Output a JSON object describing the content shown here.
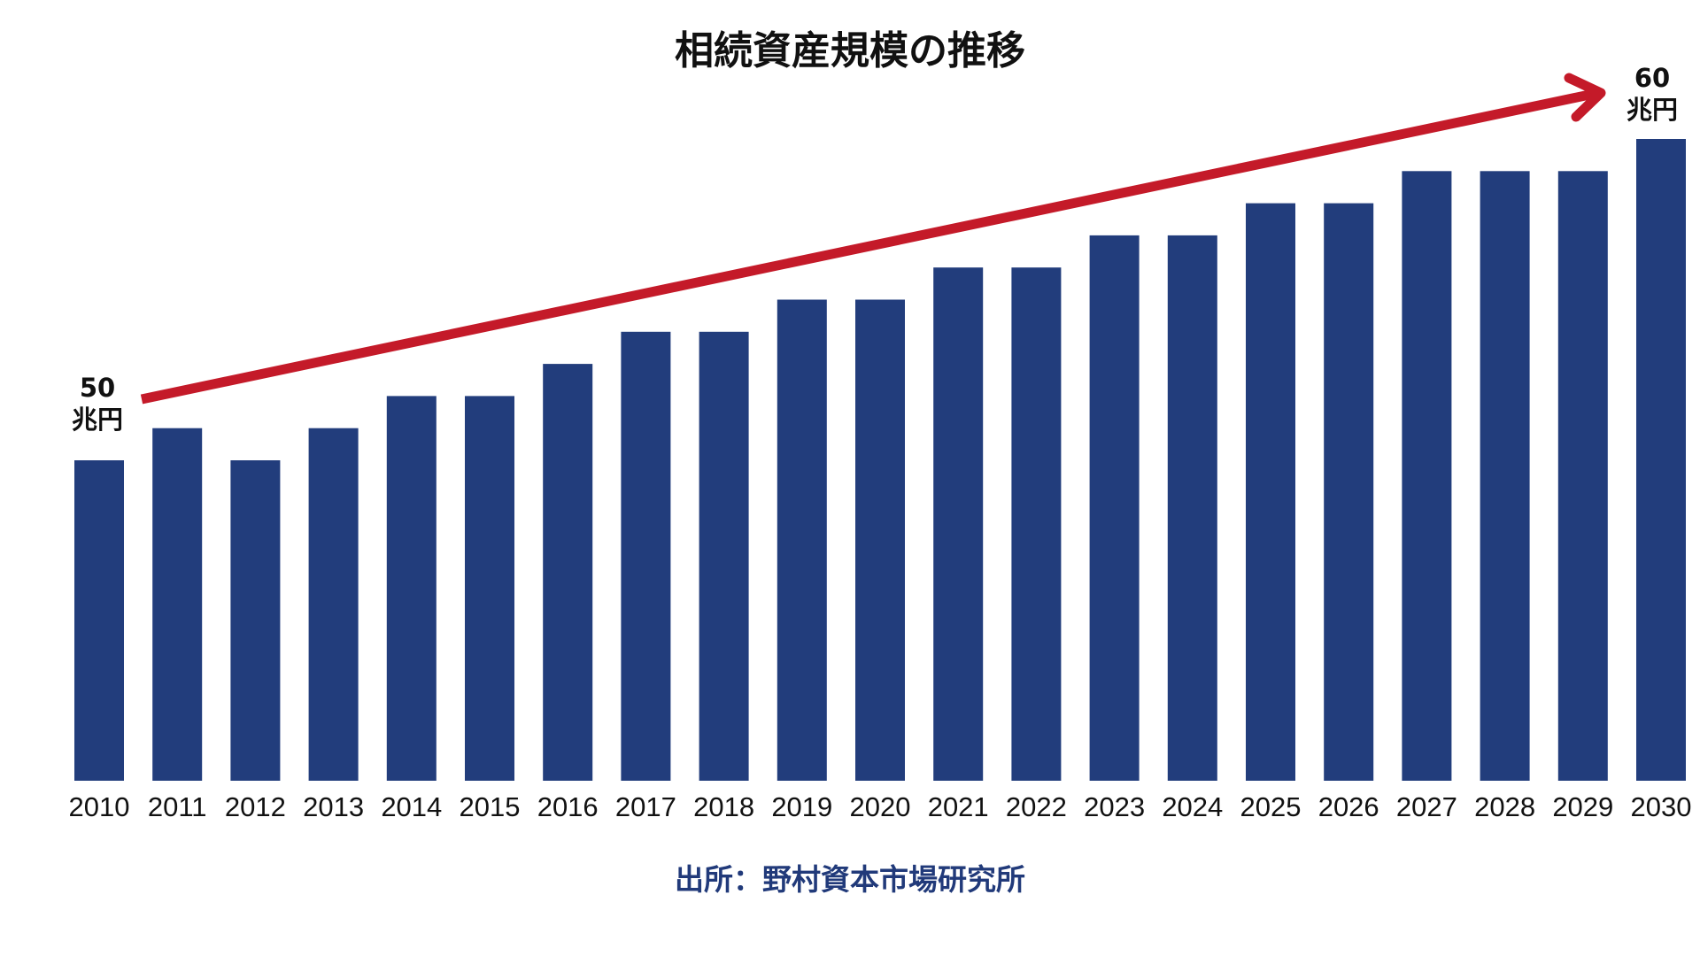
{
  "chart_data": {
    "type": "bar",
    "title": "相続資産規模の推移",
    "categories": [
      "2010",
      "2011",
      "2012",
      "2013",
      "2014",
      "2015",
      "2016",
      "2017",
      "2018",
      "2019",
      "2020",
      "2021",
      "2022",
      "2023",
      "2024",
      "2025",
      "2026",
      "2027",
      "2028",
      "2029",
      "2030"
    ],
    "values": [
      50,
      51,
      50,
      51,
      52,
      52,
      53,
      54,
      54,
      55,
      55,
      56,
      56,
      57,
      57,
      58,
      58,
      59,
      59,
      59,
      60
    ],
    "bar_color": "#223d7c",
    "trend_arrow_color": "#c41a29",
    "annotations": {
      "start": {
        "value": "50",
        "unit": "兆円"
      },
      "end": {
        "value": "60",
        "unit": "兆円"
      }
    },
    "source": "出所：野村資本市場研究所",
    "xlabel": "",
    "ylabel": "",
    "grid": false,
    "legend": "none"
  }
}
